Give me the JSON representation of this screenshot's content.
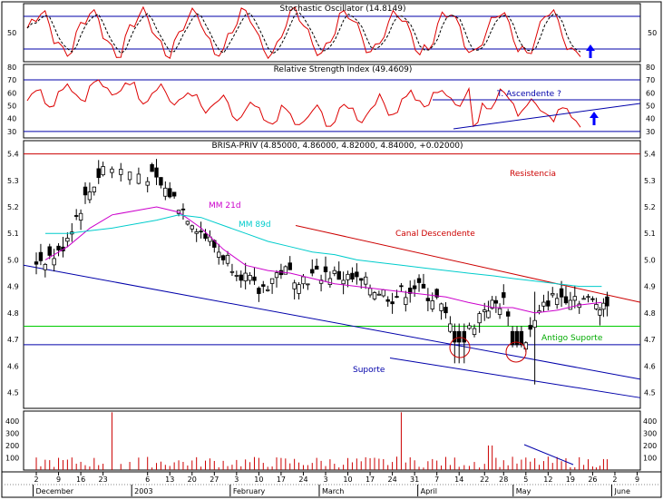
{
  "colors": {
    "background": "#ffffff",
    "frame": "#000000",
    "blue_lines": "#0000aa",
    "red_lines": "#cc0000",
    "green_line": "#00cc00",
    "mm21": "#cc00cc",
    "mm89": "#00cccc",
    "stoch_k": "#dd0000",
    "stoch_d": "#000000",
    "rsi": "#dd0000",
    "volume": "#cc0000",
    "arrow": "#0000ff"
  },
  "stochastic": {
    "title": "Stochastic Oscillator (14.8149)",
    "tick_label": "50",
    "ylim": [
      0,
      100
    ],
    "upper_band": 80,
    "lower_band": 20
  },
  "rsi": {
    "title": "Relative Strength Index (49.4609)",
    "tick_labels": [
      "80",
      "70",
      "60",
      "50",
      "40",
      "30"
    ],
    "ylim": [
      25,
      82
    ],
    "upper_band": 70,
    "lower_band": 30,
    "annotation": "T. Ascendente ?"
  },
  "price": {
    "title": "BRISA-PRIV (4.85000, 4.86000, 4.82000, 4.84000, +0.02000)",
    "tick_labels": [
      "5.4",
      "5.3",
      "5.2",
      "5.1",
      "5.0",
      "4.9",
      "4.8",
      "4.7",
      "4.6",
      "4.5"
    ],
    "ylim": [
      4.44,
      5.45
    ],
    "annotations": {
      "resistencia": "Resistencia",
      "canal": "Canal Descendente",
      "mm21": "MM 21d",
      "mm89": "MM 89d",
      "antigo_suporte": "Antigo Suporte",
      "suporte": "Suporte"
    }
  },
  "volume": {
    "tick_labels": [
      "400",
      "300",
      "200",
      "100"
    ],
    "ylim": [
      0,
      480
    ]
  },
  "xaxis": {
    "day_labels": [
      "2",
      "9",
      "16",
      "23",
      "6",
      "13",
      "20",
      "27",
      "3",
      "10",
      "17",
      "24",
      "3",
      "10",
      "17",
      "24",
      "31",
      "7",
      "14",
      "22",
      "28",
      "5",
      "12",
      "19",
      "26",
      "2",
      "9"
    ],
    "month_labels": [
      "December",
      "2003",
      "February",
      "March",
      "April",
      "May",
      "June"
    ]
  },
  "chart_data": {
    "type": "candlestick",
    "title": "BRISA-PRIV (4.85000, 4.86000, 4.82000, 4.84000, +0.02000)",
    "x_range": [
      "2002-11-28",
      "2003-06-10"
    ],
    "ylim": [
      4.44,
      5.45
    ],
    "close_approx": [
      {
        "date": "2002-12-02",
        "close": 5.0
      },
      {
        "date": "2002-12-09",
        "close": 5.02
      },
      {
        "date": "2002-12-16",
        "close": 5.2
      },
      {
        "date": "2002-12-23",
        "close": 5.35
      },
      {
        "date": "2003-01-06",
        "close": 5.32
      },
      {
        "date": "2003-01-13",
        "close": 5.25
      },
      {
        "date": "2003-01-20",
        "close": 5.15
      },
      {
        "date": "2003-01-27",
        "close": 5.05
      },
      {
        "date": "2003-02-03",
        "close": 4.97
      },
      {
        "date": "2003-02-10",
        "close": 4.88
      },
      {
        "date": "2003-02-17",
        "close": 4.96
      },
      {
        "date": "2003-02-24",
        "close": 4.93
      },
      {
        "date": "2003-03-03",
        "close": 4.95
      },
      {
        "date": "2003-03-10",
        "close": 4.93
      },
      {
        "date": "2003-03-17",
        "close": 4.9
      },
      {
        "date": "2003-03-24",
        "close": 4.86
      },
      {
        "date": "2003-03-31",
        "close": 4.9
      },
      {
        "date": "2003-04-07",
        "close": 4.85
      },
      {
        "date": "2003-04-14",
        "close": 4.68
      },
      {
        "date": "2003-04-22",
        "close": 4.82
      },
      {
        "date": "2003-04-28",
        "close": 4.84
      },
      {
        "date": "2003-05-05",
        "close": 4.7
      },
      {
        "date": "2003-05-12",
        "close": 4.85
      },
      {
        "date": "2003-05-19",
        "close": 4.87
      },
      {
        "date": "2003-05-26",
        "close": 4.84
      }
    ],
    "resistance": 5.4,
    "old_support": 4.75,
    "support_level": 4.68,
    "series": [
      {
        "name": "MM 21d",
        "values_approx": [
          5.0,
          5.05,
          5.12,
          5.17,
          5.2,
          5.18,
          5.12,
          5.04,
          4.98,
          4.96,
          4.95,
          4.93,
          4.91,
          4.9,
          4.89,
          4.88,
          4.87,
          4.86,
          4.84,
          4.82,
          4.82,
          4.8,
          4.81,
          4.83,
          4.84
        ]
      },
      {
        "name": "MM 89d",
        "values_approx": [
          5.1,
          5.1,
          5.11,
          5.12,
          5.15,
          5.17,
          5.16,
          5.13,
          5.1,
          5.07,
          5.05,
          5.03,
          5.02,
          5.0,
          4.99,
          4.98,
          4.97,
          4.96,
          4.95,
          4.94,
          4.93,
          4.92,
          4.91,
          4.9,
          4.9
        ]
      }
    ]
  }
}
